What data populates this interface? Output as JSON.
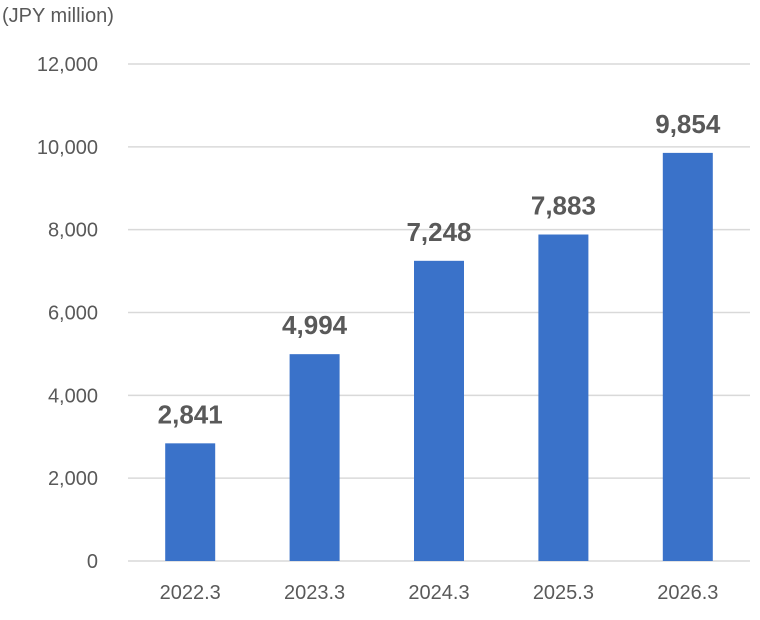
{
  "chart_data": {
    "type": "bar",
    "unit_label": "(JPY million)",
    "categories": [
      "2022.3",
      "2023.3",
      "2024.3",
      "2025.3",
      "2026.3"
    ],
    "values": [
      2841,
      4994,
      7248,
      7883,
      9854
    ],
    "value_labels": [
      "2,841",
      "4,994",
      "7,248",
      "7,883",
      "9,854"
    ],
    "yticks": [
      0,
      2000,
      4000,
      6000,
      8000,
      10000,
      12000
    ],
    "ytick_labels": [
      "0",
      "2,000",
      "4,000",
      "6,000",
      "8,000",
      "10,000",
      "12,000"
    ],
    "ylim": [
      0,
      12000
    ],
    "grid": true,
    "legend": "none",
    "bar_color": "#3a72c9",
    "grid_color": "#d9d9d9",
    "text_color": "#595959"
  }
}
